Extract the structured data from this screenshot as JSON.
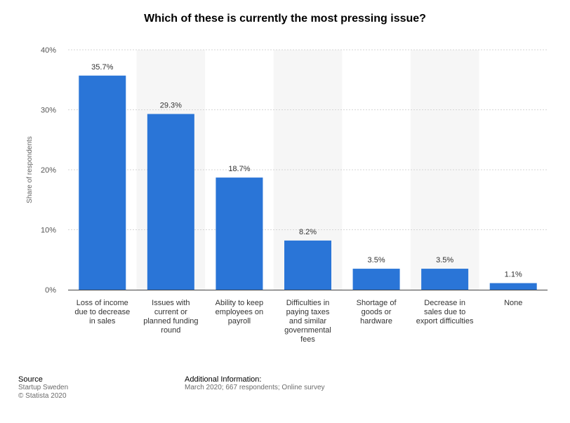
{
  "chart_data": {
    "type": "bar",
    "title": "Which of these is currently the most pressing issue?",
    "ylabel": "Share of respondents",
    "ylim": [
      0,
      40
    ],
    "yticks": [
      "0%",
      "10%",
      "20%",
      "30%",
      "40%"
    ],
    "categories": [
      [
        "Loss of income",
        "due to decrease",
        "in sales"
      ],
      [
        "Issues with",
        "current or",
        "planned funding",
        "round"
      ],
      [
        "Ability to keep",
        "employees on",
        "payroll"
      ],
      [
        "Difficulties in",
        "paying taxes",
        "and similar",
        "governmental",
        "fees"
      ],
      [
        "Shortage of",
        "goods or",
        "hardware"
      ],
      [
        "Decrease in",
        "sales due to",
        "export difficulties"
      ],
      [
        "None"
      ]
    ],
    "values": [
      35.7,
      29.3,
      18.7,
      8.2,
      3.5,
      3.5,
      1.1
    ],
    "value_labels": [
      "35.7%",
      "29.3%",
      "18.7%",
      "8.2%",
      "3.5%",
      "3.5%",
      "1.1%"
    ],
    "bar_color": "#2a75d7",
    "band_color": "#f6f6f6",
    "grid": true
  },
  "footer": {
    "source_heading": "Source",
    "source_lines": [
      "Startup Sweden",
      "© Statista 2020"
    ],
    "info_heading": "Additional Information:",
    "info_line": "March 2020; 667 respondents; Online survey"
  }
}
